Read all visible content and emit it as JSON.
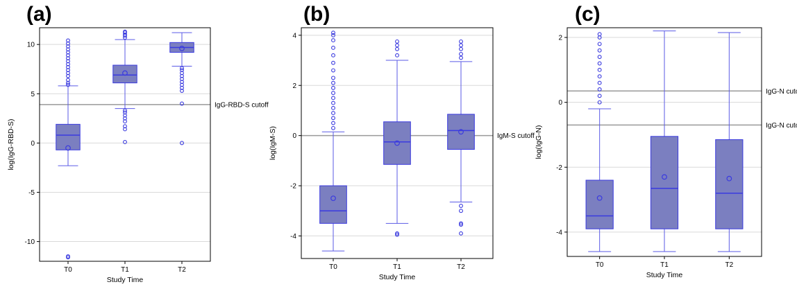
{
  "figure": {
    "panel_labels": [
      "(a)",
      "(b)",
      "(c)"
    ]
  },
  "colors": {
    "box_fill": "#7b7fc0",
    "box_edge": "#3a3adf",
    "whisker": "#5a5ae6",
    "cutoff_line": "#999999",
    "grid": "#d9d9d9"
  },
  "chart_data": [
    {
      "type": "box",
      "panel": "(a)",
      "xlabel": "Study Time",
      "ylabel": "log(IgG-RBD-S)",
      "categories": [
        "T0",
        "T1",
        "T2"
      ],
      "ylim": [
        -12,
        11.7
      ],
      "yticks": [
        -10,
        -5,
        0,
        5,
        10
      ],
      "ytick_labels": [
        "-10",
        "-5",
        "0",
        "5",
        "10"
      ],
      "grid": true,
      "boxes": [
        {
          "category": "T0",
          "whisker_low": -2.3,
          "q1": -0.7,
          "median": 0.8,
          "q3": 1.9,
          "whisker_high": 5.8,
          "mean": -0.5,
          "outliers": [
            -11.5,
            -11.6,
            5.9,
            6.1,
            6.4,
            6.8,
            7.1,
            7.4,
            7.7,
            8.0,
            8.3,
            8.6,
            8.9,
            9.2,
            9.5,
            9.8,
            10.1,
            10.4
          ]
        },
        {
          "category": "T1",
          "whisker_low": 3.5,
          "q1": 6.1,
          "median": 6.9,
          "q3": 7.9,
          "whisker_high": 10.5,
          "mean": 7.1,
          "outliers": [
            0.1,
            1.4,
            1.7,
            2.2,
            2.5,
            2.8,
            3.1,
            3.3,
            10.7,
            10.9,
            11.0,
            11.2,
            11.3
          ]
        },
        {
          "category": "T2",
          "whisker_low": 7.8,
          "q1": 9.2,
          "median": 9.7,
          "q3": 10.2,
          "whisker_high": 11.2,
          "mean": 9.6,
          "outliers": [
            0.0,
            4.0,
            5.3,
            5.6,
            5.9,
            6.2,
            6.5,
            6.8,
            7.1,
            7.4,
            7.6
          ]
        }
      ],
      "reference_lines": [
        {
          "y": 3.9,
          "label": "IgG-RBD-S cutoff"
        }
      ]
    },
    {
      "type": "box",
      "panel": "(b)",
      "xlabel": "Study Time",
      "ylabel": "log(IgM-S)",
      "categories": [
        "T0",
        "T1",
        "T2"
      ],
      "ylim": [
        -4.9,
        4.3
      ],
      "yticks": [
        -4,
        -2,
        0,
        2,
        4
      ],
      "ytick_labels": [
        "-4",
        "-2",
        "0",
        "2",
        "4"
      ],
      "grid": true,
      "boxes": [
        {
          "category": "T0",
          "whisker_low": -4.6,
          "q1": -3.5,
          "median": -3.0,
          "q3": -2.0,
          "whisker_high": 0.15,
          "mean": -2.5,
          "outliers": [
            0.3,
            0.5,
            0.7,
            0.9,
            1.1,
            1.3,
            1.5,
            1.7,
            1.9,
            2.1,
            2.3,
            2.6,
            2.9,
            3.2,
            3.5,
            3.8,
            4.0,
            4.1
          ]
        },
        {
          "category": "T1",
          "whisker_low": -3.5,
          "q1": -1.15,
          "median": -0.25,
          "q3": 0.55,
          "whisker_high": 3.0,
          "mean": -0.3,
          "outliers": [
            -3.9,
            -3.95,
            3.2,
            3.45,
            3.6,
            3.75
          ]
        },
        {
          "category": "T2",
          "whisker_low": -2.65,
          "q1": -0.55,
          "median": 0.2,
          "q3": 0.85,
          "whisker_high": 2.95,
          "mean": 0.15,
          "outliers": [
            -3.9,
            -3.55,
            -3.5,
            -3.0,
            -2.8,
            3.1,
            3.25,
            3.45,
            3.6,
            3.75
          ]
        }
      ],
      "reference_lines": [
        {
          "y": 0,
          "label": "IgM-S cutoff"
        }
      ]
    },
    {
      "type": "box",
      "panel": "(c)",
      "xlabel": "Study Time",
      "ylabel": "log(IgG-N)",
      "categories": [
        "T0",
        "T1",
        "T2"
      ],
      "ylim": [
        -4.75,
        2.3
      ],
      "yticks": [
        -4,
        -2,
        0,
        2
      ],
      "ytick_labels": [
        "-4",
        "-2",
        "0",
        "2"
      ],
      "grid": true,
      "boxes": [
        {
          "category": "T0",
          "whisker_low": -4.6,
          "q1": -3.9,
          "median": -3.5,
          "q3": -2.4,
          "whisker_high": -0.2,
          "mean": -2.95,
          "outliers": [
            0.0,
            0.2,
            0.4,
            0.6,
            0.8,
            1.0,
            1.2,
            1.4,
            1.6,
            1.8,
            2.0,
            2.1
          ]
        },
        {
          "category": "T1",
          "whisker_low": -4.6,
          "q1": -3.9,
          "median": -2.65,
          "q3": -1.05,
          "whisker_high": 2.2,
          "mean": -2.3,
          "outliers": []
        },
        {
          "category": "T2",
          "whisker_low": -4.6,
          "q1": -3.9,
          "median": -2.8,
          "q3": -1.15,
          "whisker_high": 2.15,
          "mean": -2.35,
          "outliers": []
        }
      ],
      "reference_lines": [
        {
          "y": 0.35,
          "label": "IgG-N cutoff +"
        },
        {
          "y": -0.7,
          "label": "IgG-N cutoff -"
        }
      ]
    }
  ]
}
